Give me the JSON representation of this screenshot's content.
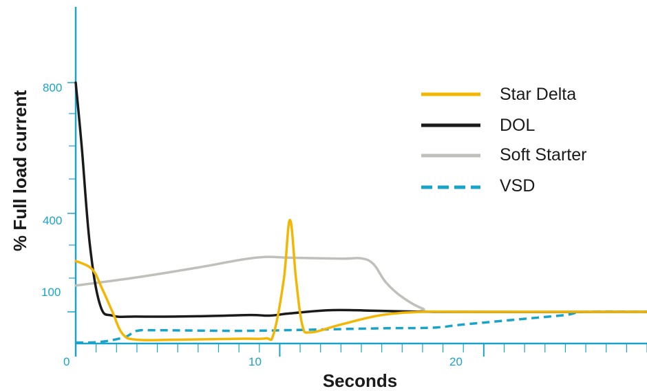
{
  "chart_data": {
    "type": "line",
    "xlabel": "Seconds",
    "ylabel": "% Full load current",
    "x_ticks": [
      0,
      10,
      20
    ],
    "y_tick_labels": [
      {
        "value": 800,
        "label": "800"
      },
      {
        "value": 400,
        "label": "400"
      },
      {
        "value": 100,
        "label": "100"
      }
    ],
    "xlim": [
      0,
      28
    ],
    "legend_position": "top-right",
    "grid": false,
    "series": [
      {
        "name": "Star Delta",
        "color": "#f2b705",
        "style": "solid",
        "points": [
          [
            0,
            255
          ],
          [
            0.8,
            230
          ],
          [
            1.3,
            170
          ],
          [
            1.8,
            100
          ],
          [
            2.3,
            30
          ],
          [
            3,
            12
          ],
          [
            5,
            12
          ],
          [
            8,
            15
          ],
          [
            9.3,
            16
          ],
          [
            9.7,
            30
          ],
          [
            10.2,
            200
          ],
          [
            10.5,
            380
          ],
          [
            10.8,
            200
          ],
          [
            11.1,
            60
          ],
          [
            11.5,
            35
          ],
          [
            13,
            60
          ],
          [
            15,
            90
          ],
          [
            17,
            100
          ],
          [
            19,
            100
          ],
          [
            24,
            100
          ],
          [
            28,
            100
          ]
        ]
      },
      {
        "name": "DOL",
        "color": "#1a1a1a",
        "style": "solid",
        "points": [
          [
            0,
            800
          ],
          [
            0.3,
            600
          ],
          [
            0.7,
            300
          ],
          [
            1.2,
            120
          ],
          [
            1.8,
            88
          ],
          [
            3,
            85
          ],
          [
            6,
            86
          ],
          [
            8.5,
            90
          ],
          [
            9.5,
            88
          ],
          [
            10.5,
            95
          ],
          [
            12.5,
            105
          ],
          [
            15,
            103
          ],
          [
            18,
            100
          ],
          [
            28,
            100
          ]
        ]
      },
      {
        "name": "Soft Starter",
        "color": "#bfc0bb",
        "style": "solid",
        "points": [
          [
            0,
            180
          ],
          [
            3,
            205
          ],
          [
            6,
            235
          ],
          [
            8.8,
            265
          ],
          [
            10.5,
            265
          ],
          [
            13,
            262
          ],
          [
            14,
            263
          ],
          [
            14.6,
            245
          ],
          [
            15.2,
            190
          ],
          [
            16,
            145
          ],
          [
            17,
            110
          ],
          [
            18,
            100
          ],
          [
            28,
            100
          ]
        ]
      },
      {
        "name": "VSD",
        "color": "#1aa3c8",
        "style": "dashed",
        "points": [
          [
            0,
            3
          ],
          [
            1.2,
            5
          ],
          [
            2.4,
            20
          ],
          [
            3,
            40
          ],
          [
            4,
            42
          ],
          [
            8,
            40
          ],
          [
            11,
            43
          ],
          [
            15,
            48
          ],
          [
            17.5,
            50
          ],
          [
            19,
            60
          ],
          [
            22,
            78
          ],
          [
            24,
            90
          ],
          [
            25,
            100
          ],
          [
            28,
            100
          ]
        ]
      }
    ]
  },
  "colors": {
    "axis": "#1aa3c8",
    "tick_label": "#1aa3c8",
    "axis_title": "#1a1a1a"
  }
}
